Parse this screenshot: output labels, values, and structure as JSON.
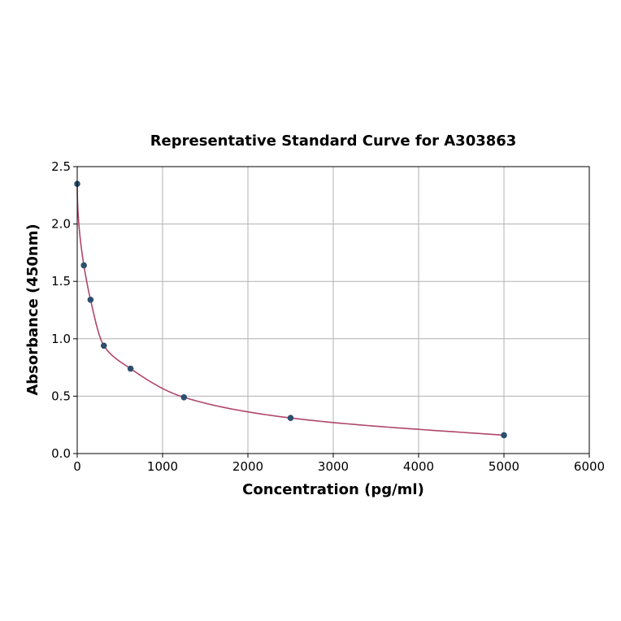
{
  "chart_data": {
    "type": "scatter",
    "title": "Representative Standard Curve for A303863",
    "xlabel": "Concentration (pg/ml)",
    "ylabel": "Absorbance (450nm)",
    "xlim": [
      0,
      6000
    ],
    "ylim": [
      0,
      2.5
    ],
    "xticks": [
      "0",
      "1000",
      "2000",
      "3000",
      "4000",
      "5000",
      "6000"
    ],
    "yticks": [
      "0.0",
      "0.5",
      "1.0",
      "1.5",
      "2.0",
      "2.5"
    ],
    "grid": true,
    "series": [
      {
        "x": [
          0,
          78,
          156,
          312,
          625,
          1250,
          2500,
          5000
        ],
        "y": [
          2.35,
          1.64,
          1.34,
          0.94,
          0.74,
          0.49,
          0.31,
          0.16
        ],
        "marker_color": "#2d4f6e",
        "curve_color": "#b0466b"
      }
    ]
  }
}
